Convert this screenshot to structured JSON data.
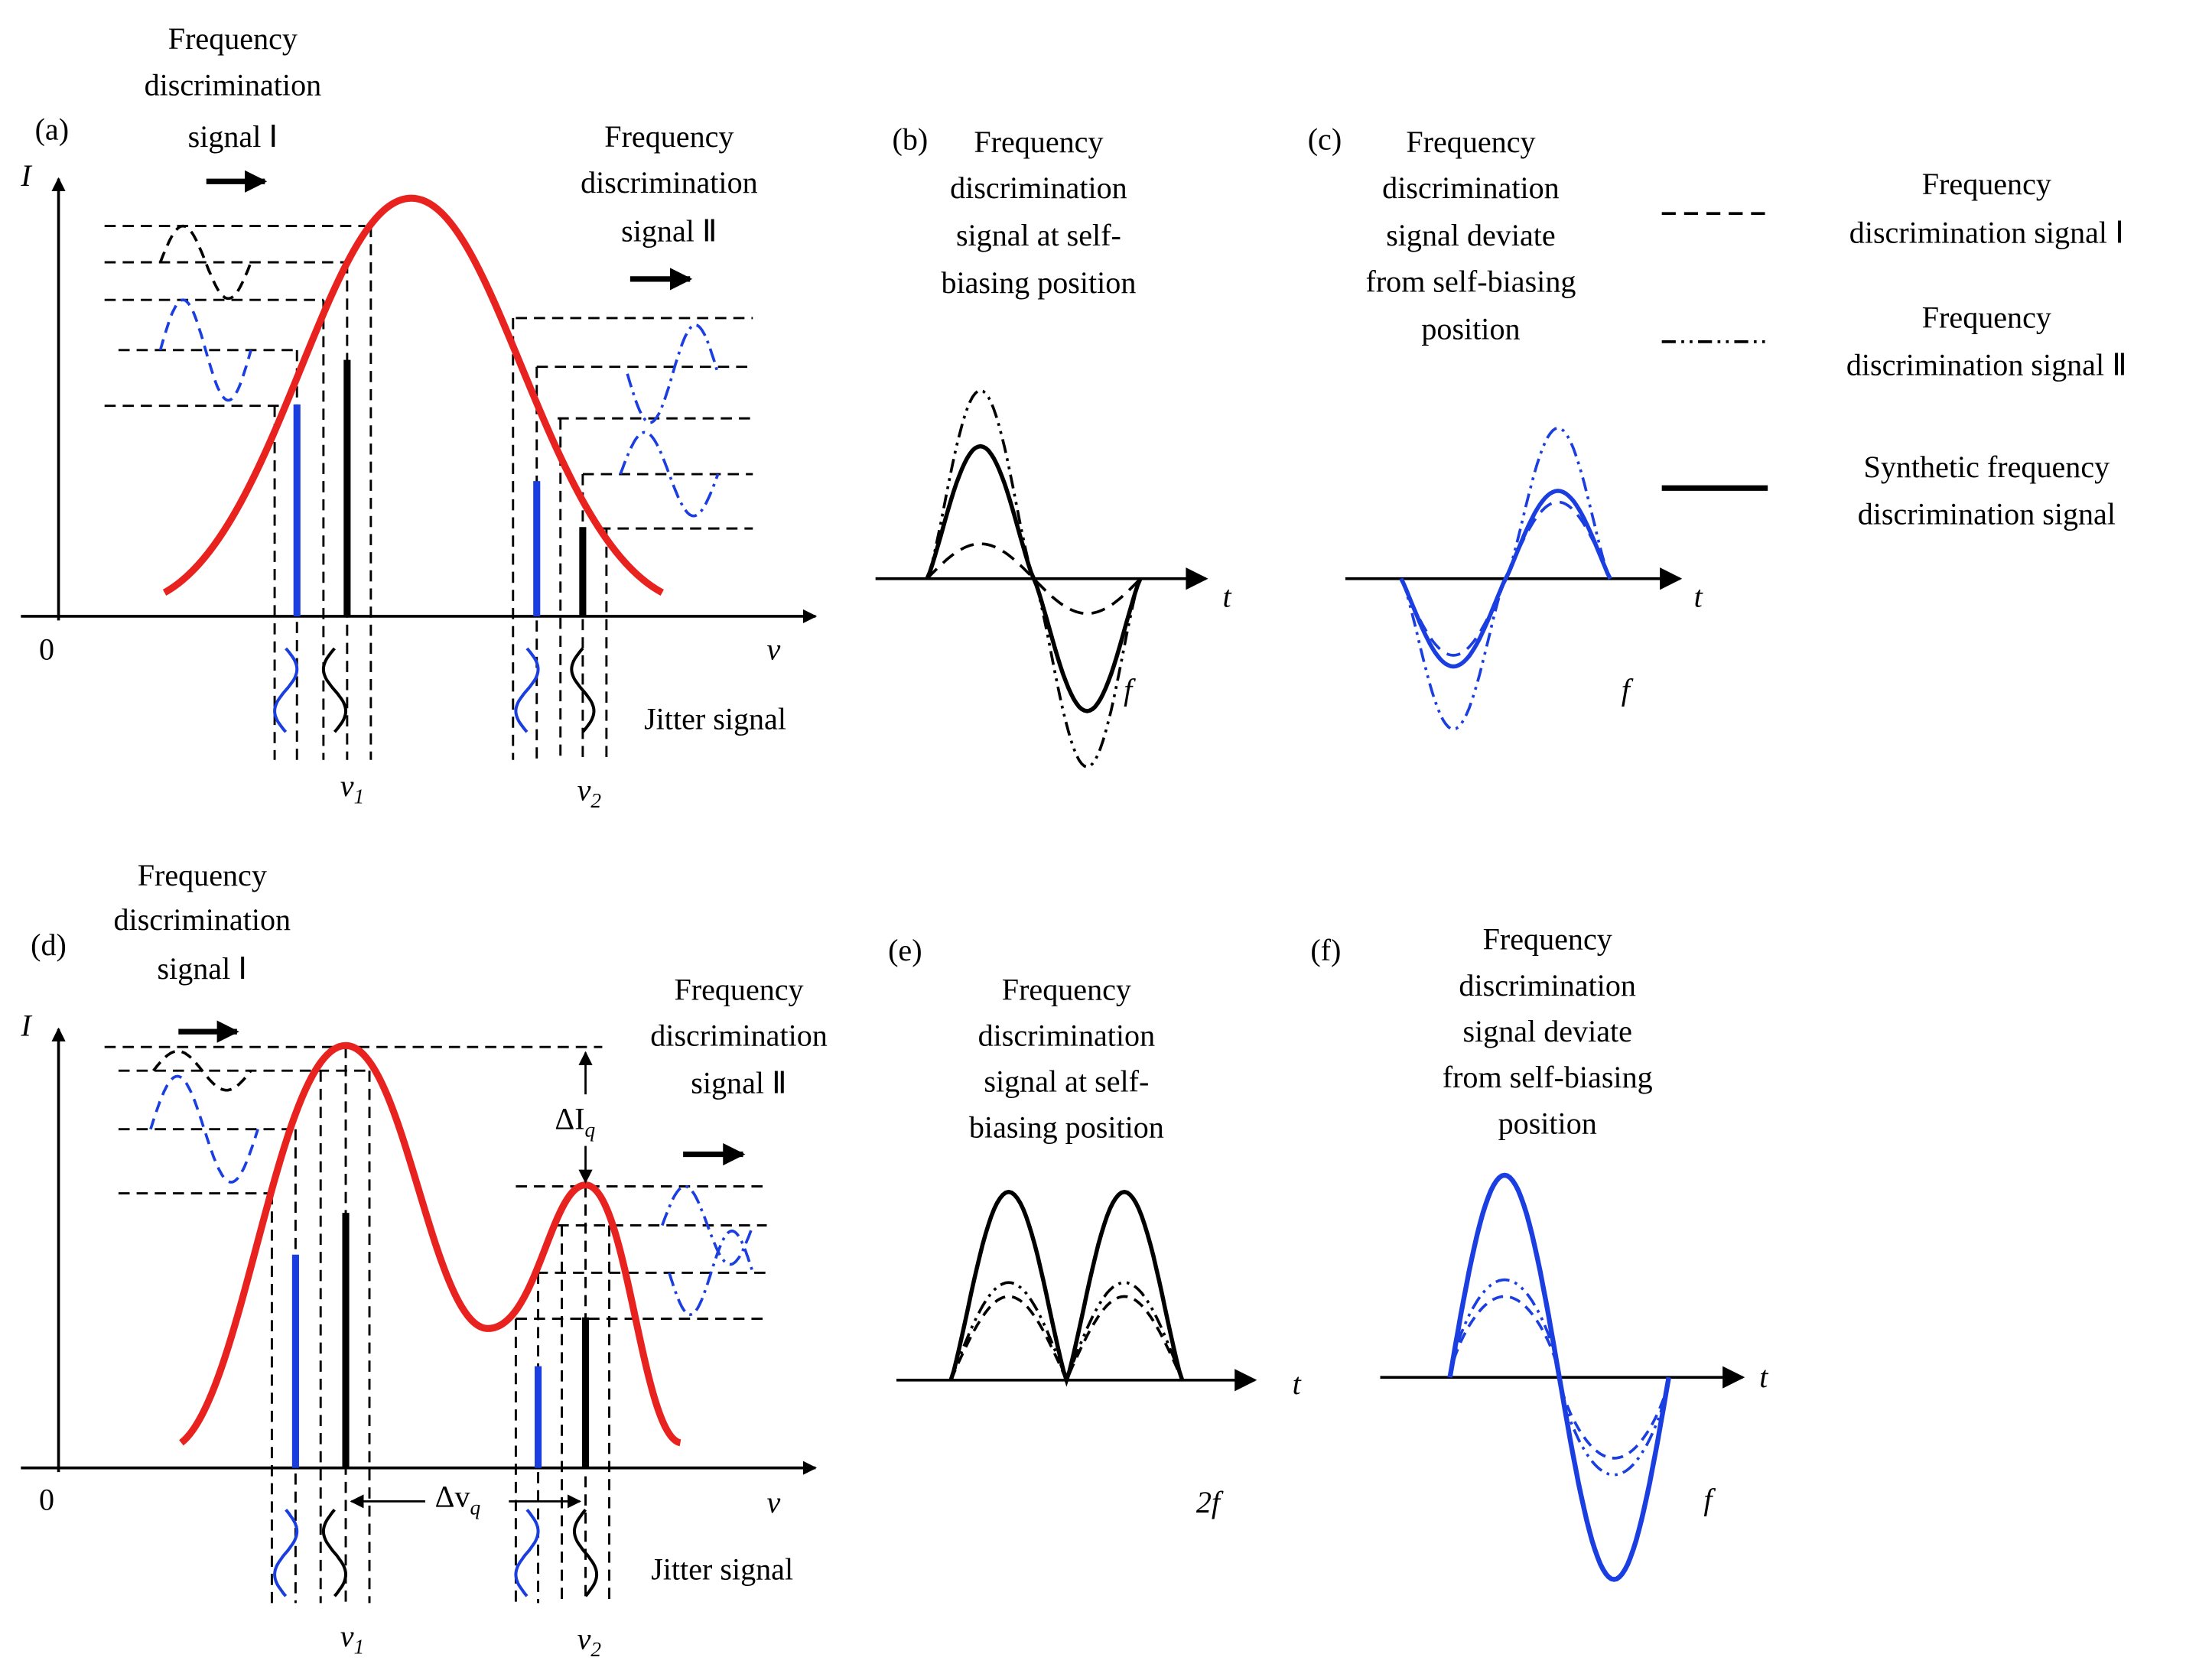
{
  "panels": {
    "a": {
      "label": "(a)",
      "signal_1": [
        "Frequency",
        "discrimination",
        "signal Ⅰ"
      ],
      "signal_2": [
        "Frequency",
        "discrimination",
        "signal Ⅱ"
      ],
      "y_axis": "I",
      "x_axis": "v",
      "origin": "0",
      "nu1": {
        "symbol": "v",
        "sub": "1"
      },
      "nu2": {
        "symbol": "v",
        "sub": "2"
      },
      "jitter": "Jitter signal"
    },
    "b": {
      "label": "(b)",
      "title": [
        "Frequency",
        "discrimination",
        "signal at self-",
        "biasing position"
      ],
      "t": "t",
      "f": "f"
    },
    "c": {
      "label": "(c)",
      "title": [
        "Frequency",
        "discrimination",
        "signal deviate",
        "from self-biasing",
        "position"
      ],
      "t": "t",
      "f": "f"
    },
    "legend": [
      [
        "Frequency",
        "discrimination signal Ⅰ"
      ],
      [
        "Frequency",
        "discrimination signal Ⅱ"
      ],
      [
        "Synthetic frequency",
        "discrimination signal"
      ]
    ],
    "d": {
      "label": "(d)",
      "signal_1": [
        "Frequency",
        "discrimination",
        "signal Ⅰ"
      ],
      "signal_2": [
        "Frequency",
        "discrimination",
        "signal Ⅱ"
      ],
      "y_axis": "I",
      "x_axis": "v",
      "origin": "0",
      "delta_i": {
        "symbol": "ΔI",
        "sub": "q"
      },
      "delta_v": {
        "symbol": "Δv",
        "sub": "q"
      },
      "nu1": {
        "symbol": "v",
        "sub": "1"
      },
      "nu2": {
        "symbol": "v",
        "sub": "2"
      },
      "jitter": "Jitter signal"
    },
    "e": {
      "label": "(e)",
      "title": [
        "Frequency",
        "discrimination",
        "signal at self-",
        "biasing position"
      ],
      "t": "t",
      "f": "2f"
    },
    "f": {
      "label": "(f)",
      "title": [
        "Frequency",
        "discrimination",
        "signal deviate",
        "from self-biasing",
        "position"
      ],
      "t": "t",
      "f": "f"
    }
  }
}
